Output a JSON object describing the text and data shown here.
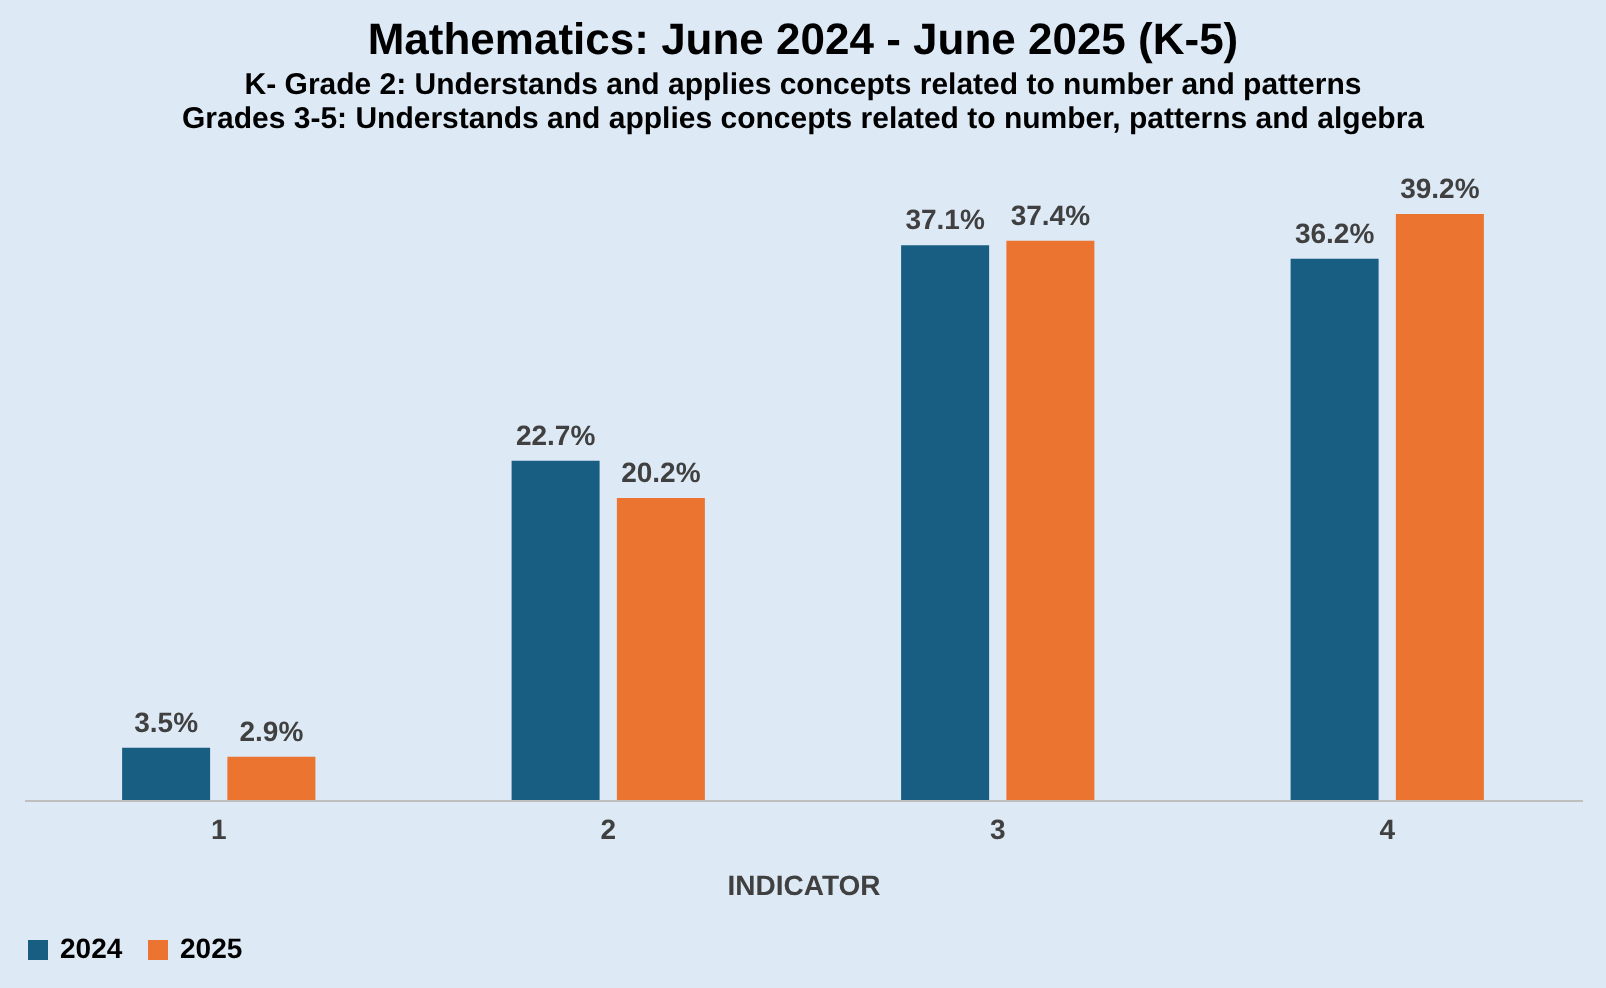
{
  "chart_data": {
    "type": "bar",
    "title": "Mathematics: June 2024 - June 2025 (K-5)",
    "subtitle": "K- Grade 2: Understands and applies concepts related to number and patterns\nGrades 3-5: Understands and applies concepts related to number, patterns and algebra",
    "xlabel": "INDICATOR",
    "categories": [
      "1",
      "2",
      "3",
      "4"
    ],
    "series": [
      {
        "name": "2024",
        "color": "#175e82",
        "values": [
          3.5,
          22.7,
          37.1,
          36.2
        ],
        "value_labels": [
          "3.5%",
          "22.7%",
          "37.1%",
          "36.2%"
        ]
      },
      {
        "name": "2025",
        "color": "#ec7431",
        "values": [
          2.9,
          20.2,
          37.4,
          39.2
        ],
        "value_labels": [
          "2.9%",
          "20.2%",
          "37.4%",
          "39.2%"
        ]
      }
    ],
    "legend": "bottom",
    "grid": false
  }
}
